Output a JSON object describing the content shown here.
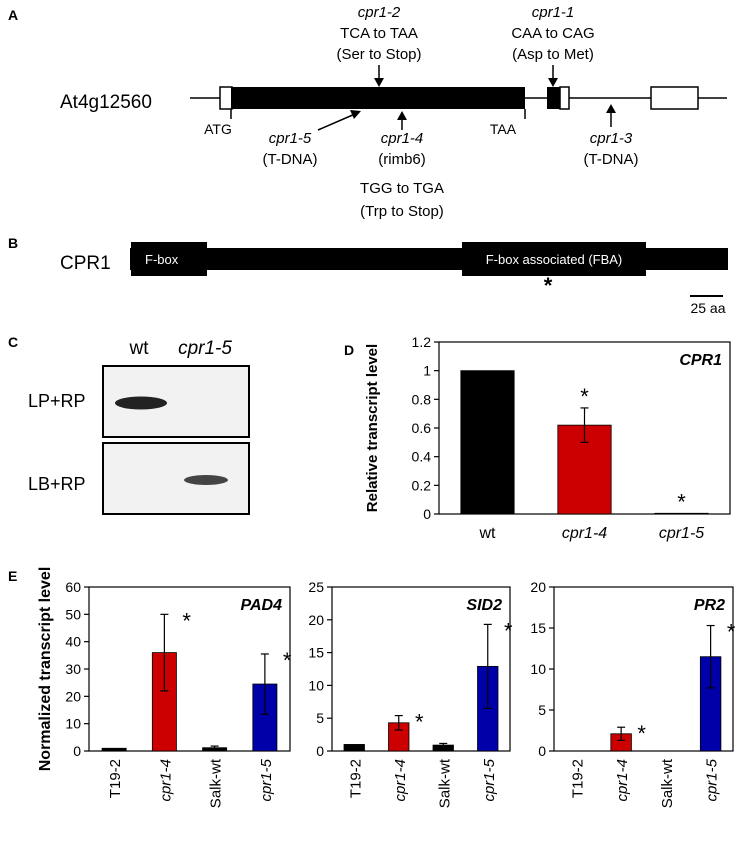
{
  "panels": {
    "a": "A",
    "b": "B",
    "c": "C",
    "d": "D",
    "e": "E"
  },
  "gene": {
    "name": "At4g12560",
    "start": "ATG",
    "stop": "TAA",
    "mutations": [
      {
        "name": "cpr1-2",
        "l1": "TCA to TAA",
        "l2": "(Ser to Stop)"
      },
      {
        "name": "cpr1-1",
        "l1": "CAA to CAG",
        "l2": "(Asp to Met)"
      },
      {
        "name": "cpr1-5",
        "l1": "(T-DNA)",
        "l2": ""
      },
      {
        "name": "cpr1-4",
        "l1": "(rimb6)",
        "l2": "TGG to TGA",
        "l3": "(Trp to Stop)"
      },
      {
        "name": "cpr1-3",
        "l1": "(T-DNA)",
        "l2": ""
      }
    ]
  },
  "protein": {
    "name": "CPR1",
    "domain1": "F-box",
    "domain2": "F-box associated (FBA)",
    "star": "*",
    "scale": "25 aa"
  },
  "gel": {
    "lane1": "wt",
    "lane2": "cpr1-5",
    "row1": "LP+RP",
    "row2": "LB+RP"
  },
  "chart_data": [
    {
      "type": "bar",
      "panel": "D",
      "title": "CPR1",
      "ylabel": "Relative transcript level",
      "xlabel": "",
      "categories": [
        "wt",
        "cpr1-4",
        "cpr1-5"
      ],
      "values": [
        1.0,
        0.62,
        0.005
      ],
      "errors": [
        0,
        0.12,
        0
      ],
      "significant": [
        false,
        true,
        true
      ],
      "ylim": [
        0,
        1.2
      ],
      "yticks": [
        "0",
        "0.2",
        "0.4",
        "0.6",
        "0.8",
        "1",
        "1.2"
      ],
      "colors": [
        "#000000",
        "#cc0000",
        "#000000"
      ],
      "grid": false
    },
    {
      "type": "bar",
      "panel": "E",
      "title": "PAD4",
      "ylabel": "Normalized transcript level",
      "xlabel": "",
      "categories": [
        "T19-2",
        "cpr1-4",
        "Salk-wt",
        "cpr1-5"
      ],
      "values": [
        1,
        36,
        1.2,
        24.5
      ],
      "errors": [
        0,
        14,
        0.6,
        11
      ],
      "significant": [
        false,
        true,
        false,
        true
      ],
      "ylim": [
        0,
        60
      ],
      "yticks": [
        "0",
        "10",
        "20",
        "30",
        "40",
        "50",
        "60"
      ],
      "colors": [
        "#000000",
        "#cc0000",
        "#000000",
        "#0000a8"
      ],
      "grid": false
    },
    {
      "type": "bar",
      "panel": "E",
      "title": "SID2",
      "ylabel": "",
      "xlabel": "",
      "categories": [
        "T19-2",
        "cpr1-4",
        "Salk-wt",
        "cpr1-5"
      ],
      "values": [
        1,
        4.3,
        0.9,
        12.9
      ],
      "errors": [
        0,
        1.1,
        0.25,
        6.4
      ],
      "significant": [
        false,
        true,
        false,
        true
      ],
      "ylim": [
        0,
        25
      ],
      "yticks": [
        "0",
        "5",
        "10",
        "15",
        "20",
        "25"
      ],
      "colors": [
        "#000000",
        "#cc0000",
        "#000000",
        "#0000a8"
      ],
      "grid": false
    },
    {
      "type": "bar",
      "panel": "E",
      "title": "PR2",
      "ylabel": "",
      "xlabel": "",
      "categories": [
        "T19-2",
        "cpr1-4",
        "Salk-wt",
        "cpr1-5"
      ],
      "values": [
        0,
        2.1,
        0,
        11.5
      ],
      "errors": [
        0,
        0.8,
        0,
        3.8
      ],
      "significant": [
        false,
        true,
        false,
        true
      ],
      "ylim": [
        0,
        20
      ],
      "yticks": [
        "0",
        "5",
        "10",
        "15",
        "20"
      ],
      "colors": [
        "#000000",
        "#cc0000",
        "#000000",
        "#0000a8"
      ],
      "grid": false
    }
  ]
}
